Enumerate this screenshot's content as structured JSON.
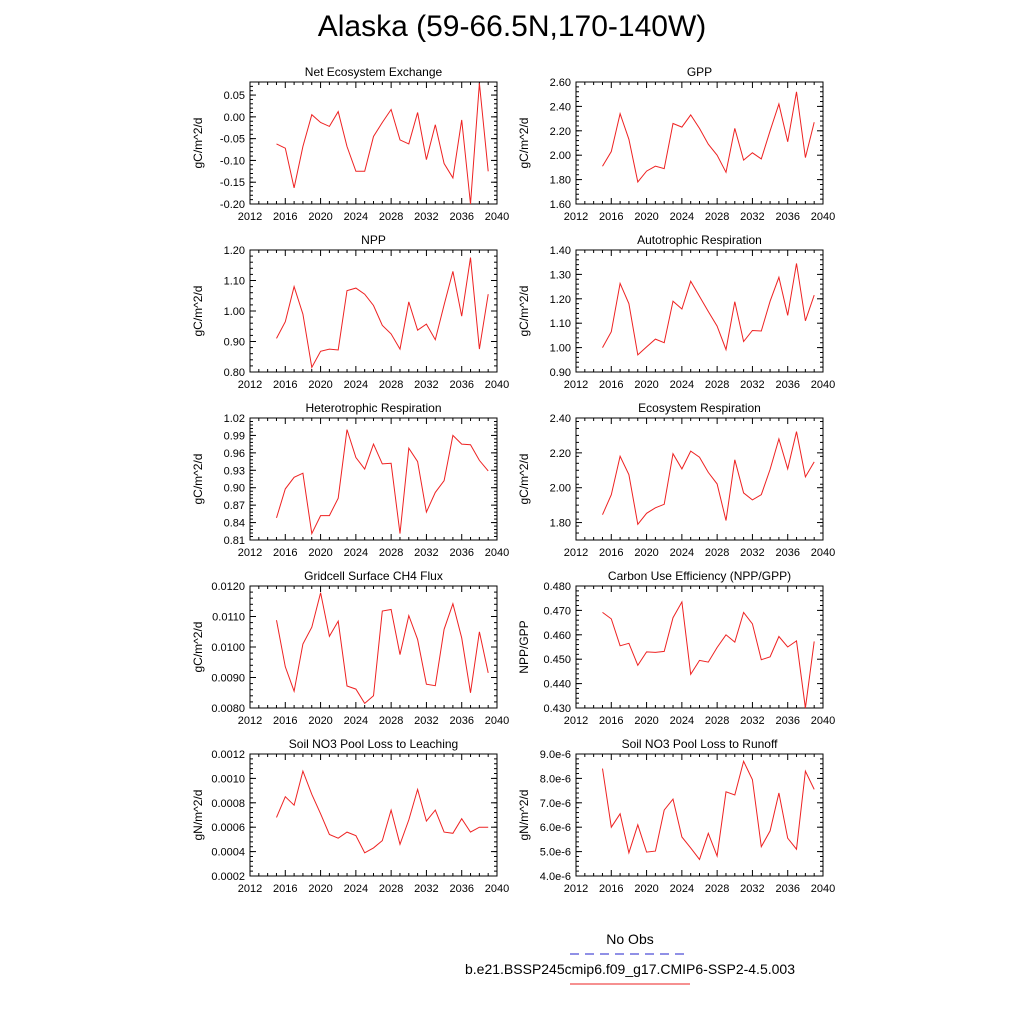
{
  "page": {
    "title": "Alaska (59-66.5N,170-140W)"
  },
  "legend": {
    "obs_label": "No Obs",
    "obs_color": "#2222cc",
    "model_label": "b.e21.BSSP245cmip6.f09_g17.CMIP6-SSP2-4.5.003",
    "model_color": "#ee2222"
  },
  "chart_data": [
    {
      "type": "line",
      "title": "Net Ecosystem Exchange",
      "ylabel": "gC/m^2/d",
      "xlabel": "",
      "xlim": [
        2012,
        2040
      ],
      "ylim": [
        -0.2,
        0.08
      ],
      "xticks": [
        "2012",
        "2016",
        "2020",
        "2024",
        "2028",
        "2032",
        "2036",
        "2040"
      ],
      "yticks": [
        "0.05",
        "0.00",
        "-0.05",
        "-0.10",
        "-0.15",
        "-0.20"
      ],
      "ytick_values": [
        0.05,
        0.0,
        -0.05,
        -0.1,
        -0.15,
        -0.2
      ],
      "x": [
        2015,
        2016,
        2017,
        2018,
        2019,
        2020,
        2021,
        2022,
        2023,
        2024,
        2025,
        2026,
        2027,
        2028,
        2029,
        2030,
        2031,
        2032,
        2033,
        2034,
        2035,
        2036,
        2037,
        2038,
        2039
      ],
      "series": [
        {
          "values": [
            -0.062,
            -0.072,
            -0.163,
            -0.068,
            0.005,
            -0.013,
            -0.022,
            0.012,
            -0.068,
            -0.125,
            -0.125,
            -0.045,
            -0.013,
            0.017,
            -0.053,
            -0.062,
            0.01,
            -0.098,
            -0.018,
            -0.107,
            -0.14,
            -0.007,
            -0.2,
            0.077,
            -0.125
          ]
        }
      ]
    },
    {
      "type": "line",
      "title": "GPP",
      "ylabel": "gC/m^2/d",
      "xlabel": "",
      "xlim": [
        2012,
        2040
      ],
      "ylim": [
        1.6,
        2.6
      ],
      "xticks": [
        "2012",
        "2016",
        "2020",
        "2024",
        "2028",
        "2032",
        "2036",
        "2040"
      ],
      "yticks": [
        "2.60",
        "2.40",
        "2.20",
        "2.00",
        "1.80",
        "1.60"
      ],
      "ytick_values": [
        2.6,
        2.4,
        2.2,
        2.0,
        1.8,
        1.6
      ],
      "x": [
        2015,
        2016,
        2017,
        2018,
        2019,
        2020,
        2021,
        2022,
        2023,
        2024,
        2025,
        2026,
        2027,
        2028,
        2029,
        2030,
        2031,
        2032,
        2033,
        2034,
        2035,
        2036,
        2037,
        2038,
        2039
      ],
      "series": [
        {
          "values": [
            1.91,
            2.03,
            2.34,
            2.13,
            1.78,
            1.87,
            1.91,
            1.89,
            2.26,
            2.23,
            2.33,
            2.22,
            2.09,
            2.0,
            1.86,
            2.22,
            1.96,
            2.02,
            1.97,
            2.2,
            2.42,
            2.11,
            2.52,
            1.98,
            2.27
          ]
        }
      ]
    },
    {
      "type": "line",
      "title": "NPP",
      "ylabel": "gC/m^2/d",
      "xlabel": "",
      "xlim": [
        2012,
        2040
      ],
      "ylim": [
        0.8,
        1.2
      ],
      "xticks": [
        "2012",
        "2016",
        "2020",
        "2024",
        "2028",
        "2032",
        "2036",
        "2040"
      ],
      "yticks": [
        "1.20",
        "1.10",
        "1.00",
        "0.90",
        "0.80"
      ],
      "ytick_values": [
        1.2,
        1.1,
        1.0,
        0.9,
        0.8
      ],
      "x": [
        2015,
        2016,
        2017,
        2018,
        2019,
        2020,
        2021,
        2022,
        2023,
        2024,
        2025,
        2026,
        2027,
        2028,
        2029,
        2030,
        2031,
        2032,
        2033,
        2034,
        2035,
        2036,
        2037,
        2038,
        2039
      ],
      "series": [
        {
          "values": [
            0.91,
            0.965,
            1.08,
            0.99,
            0.815,
            0.868,
            0.875,
            0.872,
            1.067,
            1.075,
            1.055,
            1.018,
            0.953,
            0.925,
            0.875,
            1.03,
            0.937,
            0.957,
            0.906,
            1.02,
            1.13,
            0.983,
            1.175,
            0.875,
            1.055
          ]
        }
      ]
    },
    {
      "type": "line",
      "title": "Autotrophic Respiration",
      "ylabel": "gC/m^2/d",
      "xlabel": "",
      "xlim": [
        2012,
        2040
      ],
      "ylim": [
        0.9,
        1.4
      ],
      "xticks": [
        "2012",
        "2016",
        "2020",
        "2024",
        "2028",
        "2032",
        "2036",
        "2040"
      ],
      "yticks": [
        "1.40",
        "1.30",
        "1.20",
        "1.10",
        "1.00",
        "0.90"
      ],
      "ytick_values": [
        1.4,
        1.3,
        1.2,
        1.1,
        1.0,
        0.9
      ],
      "x": [
        2015,
        2016,
        2017,
        2018,
        2019,
        2020,
        2021,
        2022,
        2023,
        2024,
        2025,
        2026,
        2027,
        2028,
        2029,
        2030,
        2031,
        2032,
        2033,
        2034,
        2035,
        2036,
        2037,
        2038,
        2039
      ],
      "series": [
        {
          "values": [
            1.0,
            1.065,
            1.263,
            1.18,
            0.97,
            1.003,
            1.035,
            1.02,
            1.19,
            1.158,
            1.272,
            1.21,
            1.148,
            1.088,
            0.992,
            1.188,
            1.025,
            1.07,
            1.068,
            1.19,
            1.288,
            1.132,
            1.345,
            1.11,
            1.215
          ]
        }
      ]
    },
    {
      "type": "line",
      "title": "Heterotrophic Respiration",
      "ylabel": "gC/m^2/d",
      "xlabel": "",
      "xlim": [
        2012,
        2040
      ],
      "ylim": [
        0.81,
        1.02
      ],
      "xticks": [
        "2012",
        "2016",
        "2020",
        "2024",
        "2028",
        "2032",
        "2036",
        "2040"
      ],
      "yticks": [
        "1.02",
        "0.99",
        "0.96",
        "0.93",
        "0.90",
        "0.87",
        "0.84",
        "0.81"
      ],
      "ytick_values": [
        1.02,
        0.99,
        0.96,
        0.93,
        0.9,
        0.87,
        0.84,
        0.81
      ],
      "x": [
        2015,
        2016,
        2017,
        2018,
        2019,
        2020,
        2021,
        2022,
        2023,
        2024,
        2025,
        2026,
        2027,
        2028,
        2029,
        2030,
        2031,
        2032,
        2033,
        2034,
        2035,
        2036,
        2037,
        2038,
        2039
      ],
      "series": [
        {
          "values": [
            0.848,
            0.898,
            0.918,
            0.925,
            0.821,
            0.852,
            0.852,
            0.882,
            1.0,
            0.952,
            0.932,
            0.975,
            0.941,
            0.942,
            0.821,
            0.968,
            0.945,
            0.858,
            0.892,
            0.912,
            0.99,
            0.975,
            0.974,
            0.947,
            0.929
          ]
        }
      ]
    },
    {
      "type": "line",
      "title": "Ecosystem Respiration",
      "ylabel": "gC/m^2/d",
      "xlabel": "",
      "xlim": [
        2012,
        2040
      ],
      "ylim": [
        1.7,
        2.4
      ],
      "xticks": [
        "2012",
        "2016",
        "2020",
        "2024",
        "2028",
        "2032",
        "2036",
        "2040"
      ],
      "yticks": [
        "2.40",
        "2.20",
        "2.00",
        "1.80"
      ],
      "ytick_values": [
        2.4,
        2.2,
        2.0,
        1.8
      ],
      "x": [
        2015,
        2016,
        2017,
        2018,
        2019,
        2020,
        2021,
        2022,
        2023,
        2024,
        2025,
        2026,
        2027,
        2028,
        2029,
        2030,
        2031,
        2032,
        2033,
        2034,
        2035,
        2036,
        2037,
        2038,
        2039
      ],
      "series": [
        {
          "values": [
            1.845,
            1.96,
            2.18,
            2.075,
            1.79,
            1.853,
            1.885,
            1.905,
            2.195,
            2.108,
            2.21,
            2.175,
            2.088,
            2.022,
            1.812,
            2.16,
            1.97,
            1.93,
            1.96,
            2.105,
            2.28,
            2.108,
            2.322,
            2.062,
            2.148
          ]
        }
      ]
    },
    {
      "type": "line",
      "title": "Gridcell Surface CH4 Flux",
      "ylabel": "gC/m^2/d",
      "xlabel": "",
      "xlim": [
        2012,
        2040
      ],
      "ylim": [
        0.008,
        0.012
      ],
      "xticks": [
        "2012",
        "2016",
        "2020",
        "2024",
        "2028",
        "2032",
        "2036",
        "2040"
      ],
      "yticks": [
        "0.0120",
        "0.0110",
        "0.0100",
        "0.0090",
        "0.0080"
      ],
      "ytick_values": [
        0.012,
        0.011,
        0.01,
        0.009,
        0.008
      ],
      "x": [
        2015,
        2016,
        2017,
        2018,
        2019,
        2020,
        2021,
        2022,
        2023,
        2024,
        2025,
        2026,
        2027,
        2028,
        2029,
        2030,
        2031,
        2032,
        2033,
        2034,
        2035,
        2036,
        2037,
        2038,
        2039
      ],
      "series": [
        {
          "values": [
            0.01088,
            0.00935,
            0.00855,
            0.0101,
            0.01065,
            0.01178,
            0.01035,
            0.01085,
            0.00872,
            0.00862,
            0.00815,
            0.0084,
            0.01118,
            0.01123,
            0.00975,
            0.01103,
            0.01025,
            0.00878,
            0.00873,
            0.01058,
            0.01142,
            0.0103,
            0.0085,
            0.0105,
            0.00915
          ]
        }
      ]
    },
    {
      "type": "line",
      "title": "Carbon Use Efficiency (NPP/GPP)",
      "ylabel": "NPP/GPP",
      "xlabel": "",
      "xlim": [
        2012,
        2040
      ],
      "ylim": [
        0.43,
        0.48
      ],
      "xticks": [
        "2012",
        "2016",
        "2020",
        "2024",
        "2028",
        "2032",
        "2036",
        "2040"
      ],
      "yticks": [
        "0.480",
        "0.470",
        "0.460",
        "0.450",
        "0.440",
        "0.430"
      ],
      "ytick_values": [
        0.48,
        0.47,
        0.46,
        0.45,
        0.44,
        0.43
      ],
      "x": [
        2015,
        2016,
        2017,
        2018,
        2019,
        2020,
        2021,
        2022,
        2023,
        2024,
        2025,
        2026,
        2027,
        2028,
        2029,
        2030,
        2031,
        2032,
        2033,
        2034,
        2035,
        2036,
        2037,
        2038,
        2039
      ],
      "series": [
        {
          "values": [
            0.4692,
            0.4665,
            0.4555,
            0.4565,
            0.4475,
            0.453,
            0.4528,
            0.4532,
            0.467,
            0.4735,
            0.4438,
            0.4495,
            0.4488,
            0.4548,
            0.46,
            0.457,
            0.4692,
            0.4645,
            0.4498,
            0.451,
            0.4593,
            0.455,
            0.4575,
            0.43,
            0.4573
          ]
        }
      ]
    },
    {
      "type": "line",
      "title": "Soil NO3 Pool Loss to Leaching",
      "ylabel": "gN/m^2/d",
      "xlabel": "",
      "xlim": [
        2012,
        2040
      ],
      "ylim": [
        0.0002,
        0.0012
      ],
      "xticks": [
        "2012",
        "2016",
        "2020",
        "2024",
        "2028",
        "2032",
        "2036",
        "2040"
      ],
      "yticks": [
        "0.0012",
        "0.0010",
        "0.0008",
        "0.0006",
        "0.0004",
        "0.0002"
      ],
      "ytick_values": [
        0.0012,
        0.001,
        0.0008,
        0.0006,
        0.0004,
        0.0002
      ],
      "x": [
        2015,
        2016,
        2017,
        2018,
        2019,
        2020,
        2021,
        2022,
        2023,
        2024,
        2025,
        2026,
        2027,
        2028,
        2029,
        2030,
        2031,
        2032,
        2033,
        2034,
        2035,
        2036,
        2037,
        2038,
        2039
      ],
      "series": [
        {
          "values": [
            0.00068,
            0.00085,
            0.00078,
            0.00106,
            0.00087,
            0.00071,
            0.00054,
            0.00051,
            0.00056,
            0.00053,
            0.00039,
            0.00043,
            0.00049,
            0.00074,
            0.00046,
            0.00066,
            0.00091,
            0.00065,
            0.00074,
            0.00056,
            0.00055,
            0.00067,
            0.00056,
            0.0006,
            0.0006
          ]
        }
      ]
    },
    {
      "type": "line",
      "title": "Soil NO3 Pool Loss to Runoff",
      "ylabel": "gN/m^2/d",
      "xlabel": "",
      "xlim": [
        2012,
        2040
      ],
      "ylim": [
        4e-06,
        9e-06
      ],
      "xticks": [
        "2012",
        "2016",
        "2020",
        "2024",
        "2028",
        "2032",
        "2036",
        "2040"
      ],
      "yticks": [
        "9.0e-6",
        "8.0e-6",
        "7.0e-6",
        "6.0e-6",
        "5.0e-6",
        "4.0e-6"
      ],
      "ytick_values": [
        9e-06,
        8e-06,
        7e-06,
        6e-06,
        5e-06,
        4e-06
      ],
      "x": [
        2015,
        2016,
        2017,
        2018,
        2019,
        2020,
        2021,
        2022,
        2023,
        2024,
        2025,
        2026,
        2027,
        2028,
        2029,
        2030,
        2031,
        2032,
        2033,
        2034,
        2035,
        2036,
        2037,
        2038,
        2039
      ],
      "series": [
        {
          "values": [
            8.4e-06,
            6e-06,
            6.55e-06,
            4.95e-06,
            6.1e-06,
            4.98e-06,
            5.02e-06,
            6.7e-06,
            7.15e-06,
            5.6e-06,
            5.15e-06,
            4.68e-06,
            5.75e-06,
            4.82e-06,
            7.45e-06,
            7.32e-06,
            8.7e-06,
            7.95e-06,
            5.2e-06,
            5.85e-06,
            7.4e-06,
            5.55e-06,
            5.1e-06,
            8.3e-06,
            7.55e-06
          ]
        }
      ]
    }
  ]
}
